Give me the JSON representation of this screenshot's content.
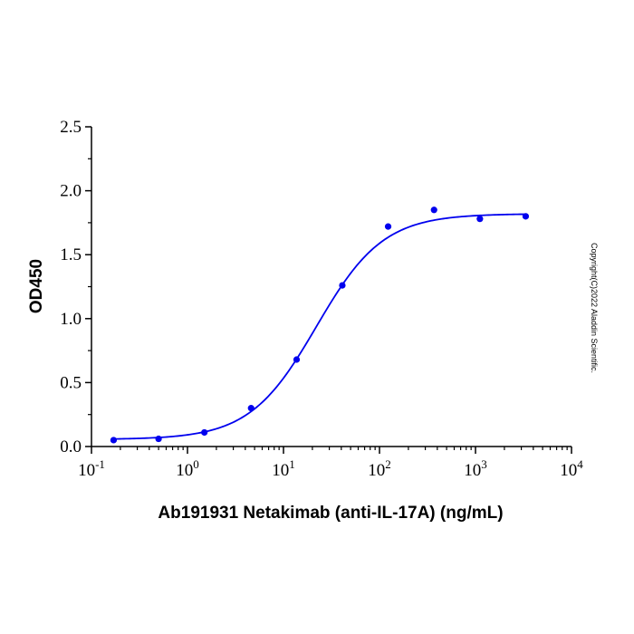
{
  "chart_data": {
    "type": "scatter",
    "xlabel": "Ab191931 Netakimab (anti-IL-17A) (ng/mL)",
    "ylabel": "OD450",
    "x_scale": "log10",
    "xlim": [
      0.1,
      10000
    ],
    "ylim": [
      0,
      2.5
    ],
    "x_ticks": [
      {
        "base": "10",
        "exp": "-1",
        "value": 0.1
      },
      {
        "base": "10",
        "exp": "0",
        "value": 1
      },
      {
        "base": "10",
        "exp": "1",
        "value": 10
      },
      {
        "base": "10",
        "exp": "2",
        "value": 100
      },
      {
        "base": "10",
        "exp": "3",
        "value": 1000
      },
      {
        "base": "10",
        "exp": "4",
        "value": 10000
      }
    ],
    "y_ticks": [
      "0.0",
      "0.5",
      "1.0",
      "1.5",
      "2.0",
      "2.5"
    ],
    "grid": false,
    "series": [
      {
        "color": "#0000ee",
        "points": [
          {
            "x": 0.17,
            "y": 0.05
          },
          {
            "x": 0.5,
            "y": 0.06
          },
          {
            "x": 1.5,
            "y": 0.11
          },
          {
            "x": 4.6,
            "y": 0.3
          },
          {
            "x": 13.7,
            "y": 0.68
          },
          {
            "x": 41,
            "y": 1.26
          },
          {
            "x": 123,
            "y": 1.72
          },
          {
            "x": 370,
            "y": 1.85
          },
          {
            "x": 1111,
            "y": 1.78
          },
          {
            "x": 3333,
            "y": 1.8
          }
        ],
        "fit": {
          "bottom": 0.055,
          "top": 1.82,
          "ec50": 22,
          "hill": 1.25
        }
      }
    ]
  },
  "copyright": "Copyright(C)2022 Aladdin Scientific."
}
